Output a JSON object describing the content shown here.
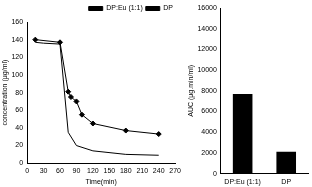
{
  "chart_data": [
    {
      "type": "line",
      "x_label": "Time(min)",
      "y_label": "concentration (μg/ml)",
      "xlim": [
        0,
        270
      ],
      "xticks": [
        0,
        30,
        60,
        90,
        120,
        150,
        180,
        210,
        240,
        270
      ],
      "ylim": [
        0,
        160
      ],
      "yticks": [
        0,
        20,
        40,
        60,
        80,
        100,
        120,
        140,
        160
      ],
      "grid": false,
      "legend": "top-right",
      "series": [
        {
          "name": "DP:Eu (1:1)",
          "color": "#000000",
          "marker": "diamond",
          "line_style": "solid",
          "x": [
            15,
            60,
            75,
            80,
            90,
            100,
            120,
            180,
            240
          ],
          "values": [
            140,
            137,
            81,
            75,
            70,
            55,
            45,
            37,
            33
          ]
        },
        {
          "name": "DP",
          "color": "#000000",
          "marker": "none",
          "line_style": "solid",
          "x": [
            15,
            30,
            60,
            75,
            90,
            120,
            180,
            240
          ],
          "values": [
            137,
            136,
            135,
            35,
            20,
            14,
            10,
            9
          ]
        }
      ]
    },
    {
      "type": "bar",
      "y_label": "AUC (μg.min/ml)",
      "categories": [
        "DP:Eu (1:1)",
        "DP"
      ],
      "values": [
        7700,
        2100
      ],
      "color": "#000000",
      "ylim": [
        0,
        16000
      ],
      "yticks": [
        0,
        2000,
        4000,
        6000,
        8000,
        10000,
        12000,
        14000,
        16000
      ],
      "grid": false
    }
  ]
}
